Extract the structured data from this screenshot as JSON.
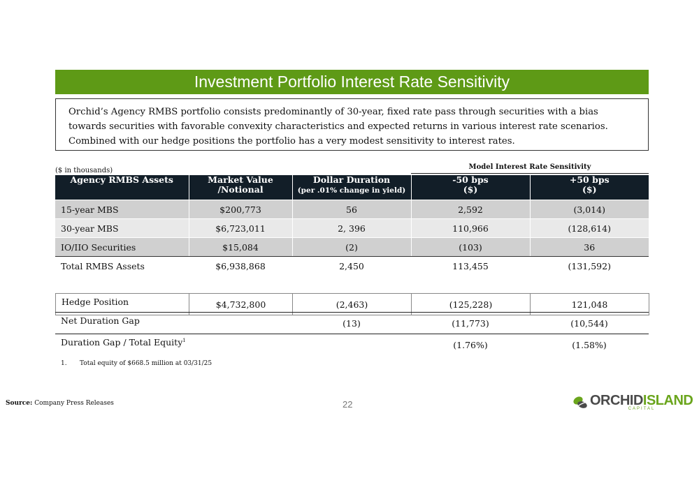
{
  "title": "Investment Portfolio Interest Rate Sensitivity",
  "intro": "Orchid’s Agency RMBS portfolio consists predominantly of 30-year, fixed rate pass through securities with a bias towards securities with favorable convexity characteristics and expected returns in various interest rate scenarios.  Combined with our hedge positions the portfolio has a very modest sensitivity to interest rates.",
  "units_note": "($ in thousands)",
  "model_header": "Model Interest Rate Sensitivity",
  "columns": [
    {
      "line1": "Agency RMBS Assets",
      "line2": ""
    },
    {
      "line1": "Market Value",
      "line2": "/Notional"
    },
    {
      "line1": "Dollar Duration",
      "line2": "(per .01% change in yield)"
    },
    {
      "line1": "-50 bps",
      "line2": "($)"
    },
    {
      "line1": "+50 bps",
      "line2": "($)"
    }
  ],
  "rows": [
    {
      "name": "15-year MBS",
      "market_value": "$200,773",
      "dollar_duration": "56",
      "minus50": "2,592",
      "plus50": "(3,014)"
    },
    {
      "name": "30-year MBS",
      "market_value": "$6,723,011",
      "dollar_duration": "2, 396",
      "minus50": "110,966",
      "plus50": "(128,614)"
    },
    {
      "name": "IO/IIO Securities",
      "market_value": "$15,084",
      "dollar_duration": "(2)",
      "minus50": "(103)",
      "plus50": "36"
    }
  ],
  "total": {
    "name": "Total RMBS Assets",
    "market_value": "$6,938,868",
    "dollar_duration": "2,450",
    "minus50": "113,455",
    "plus50": "(131,592)"
  },
  "hedge": {
    "name": "Hedge Position",
    "market_value": "$4,732,800",
    "dollar_duration": "(2,463)",
    "minus50": "(125,228)",
    "plus50": "121,048"
  },
  "net_gap": {
    "name": "Net Duration Gap",
    "market_value": "",
    "dollar_duration": "(13)",
    "minus50": "(11,773)",
    "plus50": "(10,544)"
  },
  "gap_equity": {
    "name": "Duration Gap / Total Equity",
    "superscript": "1",
    "market_value": "",
    "dollar_duration": "",
    "minus50": "(1.76%)",
    "plus50": "(1.58%)"
  },
  "footnote": {
    "number": "1.",
    "text": "Total equity of $668.5 million at 03/31/25"
  },
  "source": {
    "label": "Source:",
    "text": "Company Press Releases"
  },
  "page_number": "22",
  "logo": {
    "word1": "ORCHID",
    "word2": "ISLAND",
    "sub": "CAPITAL",
    "icon": "leaf-logo-icon"
  },
  "colors": {
    "title_bar": "#5e9a16",
    "table_header": "#121e28",
    "row_dark": "#d0d0d0",
    "row_light": "#e9e9e9",
    "logo_green": "#6aa51c"
  }
}
